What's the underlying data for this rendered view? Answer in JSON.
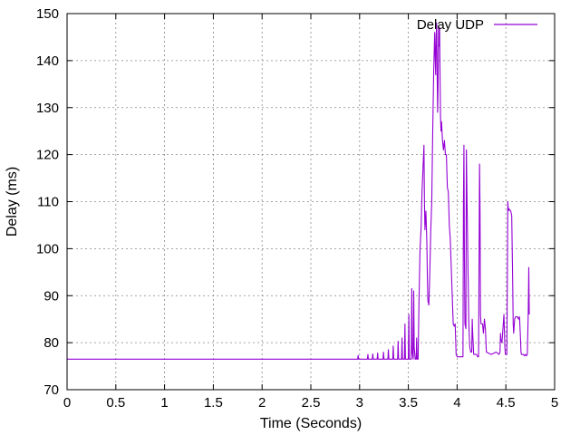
{
  "chart_data": {
    "type": "line",
    "title": "",
    "xlabel": "Time (Seconds)",
    "ylabel": "Delay (ms)",
    "xlim": [
      0,
      5
    ],
    "ylim": [
      70,
      150
    ],
    "x_ticks": [
      0,
      0.5,
      1,
      1.5,
      2,
      2.5,
      3,
      3.5,
      4,
      4.5,
      5
    ],
    "x_tick_labels": [
      "0",
      "0.5",
      "1",
      "1.5",
      "2",
      "2.5",
      "3",
      "3.5",
      "4",
      "4.5",
      "5"
    ],
    "y_ticks": [
      70,
      80,
      90,
      100,
      110,
      120,
      130,
      140,
      150
    ],
    "y_tick_labels": [
      "70",
      "80",
      "90",
      "100",
      "110",
      "120",
      "130",
      "140",
      "150"
    ],
    "grid": true,
    "legend_position": "top-right",
    "series": [
      {
        "name": "Delay UDP",
        "color": "#9400d3",
        "points": [
          [
            0,
            76.5
          ],
          [
            2.9,
            76.5
          ],
          [
            2.98,
            76.5
          ],
          [
            2.985,
            77.3
          ],
          [
            2.99,
            76.5
          ],
          [
            3.08,
            76.5
          ],
          [
            3.085,
            77.5
          ],
          [
            3.09,
            76.5
          ],
          [
            3.13,
            76.5
          ],
          [
            3.135,
            77.6
          ],
          [
            3.14,
            76.5
          ],
          [
            3.18,
            76.5
          ],
          [
            3.185,
            77.8
          ],
          [
            3.19,
            76.5
          ],
          [
            3.24,
            76.5
          ],
          [
            3.245,
            78
          ],
          [
            3.25,
            76.5
          ],
          [
            3.29,
            76.5
          ],
          [
            3.295,
            78.5
          ],
          [
            3.3,
            76.5
          ],
          [
            3.34,
            76.5
          ],
          [
            3.345,
            79.3
          ],
          [
            3.35,
            76.5
          ],
          [
            3.39,
            76.5
          ],
          [
            3.395,
            80.3
          ],
          [
            3.4,
            76.5
          ],
          [
            3.43,
            76.5
          ],
          [
            3.435,
            81
          ],
          [
            3.44,
            76.5
          ],
          [
            3.46,
            76.5
          ],
          [
            3.465,
            84
          ],
          [
            3.47,
            76.5
          ],
          [
            3.5,
            76.5
          ],
          [
            3.505,
            86
          ],
          [
            3.51,
            76.5
          ],
          [
            3.53,
            76.5
          ],
          [
            3.535,
            91.5
          ],
          [
            3.54,
            78
          ],
          [
            3.55,
            76.5
          ],
          [
            3.555,
            91
          ],
          [
            3.56,
            79
          ],
          [
            3.57,
            76.5
          ],
          [
            3.58,
            76.5
          ],
          [
            3.585,
            81
          ],
          [
            3.59,
            76.5
          ],
          [
            3.6,
            76.5
          ],
          [
            3.61,
            90
          ],
          [
            3.62,
            100
          ],
          [
            3.63,
            104
          ],
          [
            3.64,
            112
          ],
          [
            3.65,
            117
          ],
          [
            3.66,
            122
          ],
          [
            3.665,
            110
          ],
          [
            3.67,
            104
          ],
          [
            3.68,
            108
          ],
          [
            3.69,
            101
          ],
          [
            3.695,
            94
          ],
          [
            3.7,
            89
          ],
          [
            3.71,
            88
          ],
          [
            3.72,
            95
          ],
          [
            3.73,
            104
          ],
          [
            3.74,
            110
          ],
          [
            3.75,
            125
          ],
          [
            3.76,
            138
          ],
          [
            3.77,
            146
          ],
          [
            3.775,
            141
          ],
          [
            3.78,
            137
          ],
          [
            3.785,
            145
          ],
          [
            3.79,
            148
          ],
          [
            3.795,
            138
          ],
          [
            3.8,
            129
          ],
          [
            3.805,
            135
          ],
          [
            3.81,
            147
          ],
          [
            3.815,
            143
          ],
          [
            3.82,
            147
          ],
          [
            3.825,
            137
          ],
          [
            3.83,
            128
          ],
          [
            3.835,
            125
          ],
          [
            3.84,
            127
          ],
          [
            3.85,
            123
          ],
          [
            3.86,
            121
          ],
          [
            3.87,
            123
          ],
          [
            3.88,
            120
          ],
          [
            3.89,
            120
          ],
          [
            3.9,
            113
          ],
          [
            3.91,
            112
          ],
          [
            3.92,
            105
          ],
          [
            3.93,
            102
          ],
          [
            3.94,
            96
          ],
          [
            3.95,
            90
          ],
          [
            3.96,
            84
          ],
          [
            3.97,
            83.5
          ],
          [
            3.98,
            84
          ],
          [
            3.99,
            77.5
          ],
          [
            4.0,
            77
          ],
          [
            4.05,
            77
          ],
          [
            4.06,
            77
          ],
          [
            4.065,
            110
          ],
          [
            4.07,
            122
          ],
          [
            4.075,
            98
          ],
          [
            4.08,
            84
          ],
          [
            4.09,
            83
          ],
          [
            4.095,
            121
          ],
          [
            4.1,
            113
          ],
          [
            4.11,
            98
          ],
          [
            4.12,
            84
          ],
          [
            4.13,
            79
          ],
          [
            4.14,
            78
          ],
          [
            4.15,
            78
          ],
          [
            4.155,
            85
          ],
          [
            4.16,
            82
          ],
          [
            4.17,
            77.5
          ],
          [
            4.2,
            77.5
          ],
          [
            4.21,
            77
          ],
          [
            4.22,
            77
          ],
          [
            4.23,
            118
          ],
          [
            4.235,
            108
          ],
          [
            4.24,
            86
          ],
          [
            4.245,
            84
          ],
          [
            4.25,
            84
          ],
          [
            4.26,
            84
          ],
          [
            4.27,
            82
          ],
          [
            4.28,
            85
          ],
          [
            4.29,
            83
          ],
          [
            4.3,
            78
          ],
          [
            4.35,
            77.5
          ],
          [
            4.4,
            78
          ],
          [
            4.43,
            77.5
          ],
          [
            4.44,
            78
          ],
          [
            4.445,
            82
          ],
          [
            4.45,
            80.5
          ],
          [
            4.46,
            80
          ],
          [
            4.48,
            86
          ],
          [
            4.49,
            79
          ],
          [
            4.495,
            77.5
          ],
          [
            4.5,
            77.5
          ],
          [
            4.51,
            77.5
          ],
          [
            4.52,
            110
          ],
          [
            4.525,
            108
          ],
          [
            4.53,
            108.5
          ],
          [
            4.55,
            108
          ],
          [
            4.56,
            107
          ],
          [
            4.57,
            93
          ],
          [
            4.575,
            84
          ],
          [
            4.58,
            82
          ],
          [
            4.59,
            85
          ],
          [
            4.6,
            85.5
          ],
          [
            4.62,
            85.5
          ],
          [
            4.63,
            85
          ],
          [
            4.64,
            85.5
          ],
          [
            4.65,
            81
          ],
          [
            4.655,
            78
          ],
          [
            4.66,
            77.5
          ],
          [
            4.68,
            77.5
          ],
          [
            4.69,
            77.2
          ],
          [
            4.7,
            77.5
          ],
          [
            4.71,
            77.2
          ],
          [
            4.72,
            77.5
          ],
          [
            4.73,
            87
          ],
          [
            4.735,
            96
          ],
          [
            4.74,
            86
          ]
        ]
      }
    ]
  }
}
